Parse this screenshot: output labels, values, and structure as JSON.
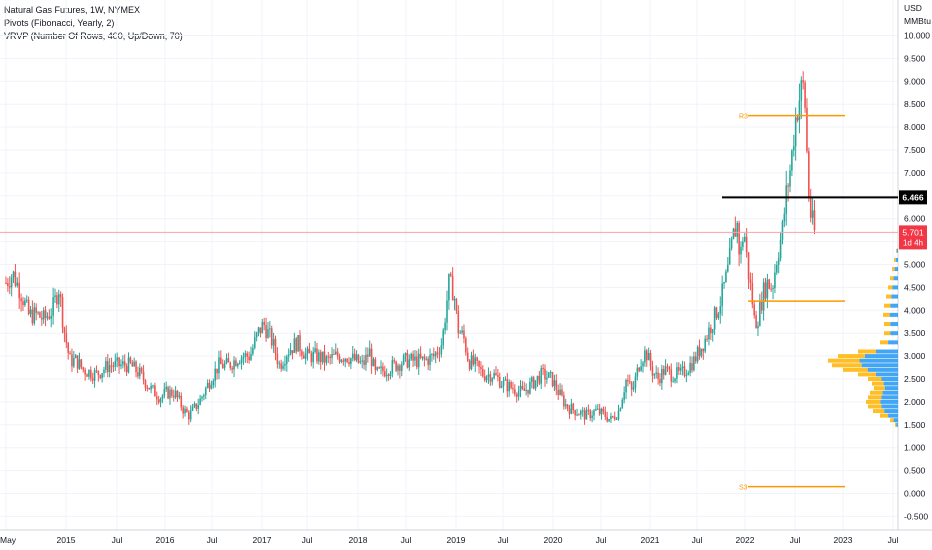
{
  "legend": {
    "line1": "Natural Gas Futures, 1W, NYMEX",
    "line2": "Pivots (Fibonacci, Yearly, 2)",
    "line3": "VRVP (Number Of Rows, 400, Up/Down, 70)"
  },
  "axis_units": [
    "USD",
    "MMBtu"
  ],
  "price_badges": {
    "level_label": "6.466",
    "last_price": "5.701",
    "countdown": "1d 4h"
  },
  "pivot_labels": {
    "r3": "R3",
    "s3": "S3"
  },
  "colors": {
    "up": "#26a69a",
    "down": "#ef5350",
    "pivot": "#ff9800",
    "vol_up": "#2196f3",
    "vol_down": "#ffb300",
    "level": "#000000",
    "last": "#f23645"
  },
  "chart_data": {
    "type": "candlestick",
    "title": "Natural Gas Futures, 1W, NYMEX",
    "x_tick_labels": [
      "May",
      "2015",
      "Jul",
      "2016",
      "Jul",
      "2017",
      "Jul",
      "2018",
      "Jul",
      "2019",
      "Jul",
      "2020",
      "Jul",
      "2021",
      "Jul",
      "2022",
      "Jul",
      "2023",
      "Jul"
    ],
    "y_tick_labels": [
      "10.000",
      "9.500",
      "9.000",
      "8.500",
      "8.000",
      "7.500",
      "7.000",
      "6.500",
      "6.000",
      "5.500",
      "5.000",
      "4.500",
      "4.000",
      "3.500",
      "3.000",
      "2.500",
      "2.000",
      "1.500",
      "1.000",
      "0.500",
      "0.000",
      "-0.500"
    ],
    "ylim": [
      -0.6,
      10.4
    ],
    "xlim": [
      2014.33,
      2023.5
    ],
    "grid": true,
    "price_path": [
      [
        2014.33,
        4.6
      ],
      [
        2014.4,
        4.8
      ],
      [
        2014.48,
        4.4
      ],
      [
        2014.56,
        3.9
      ],
      [
        2014.65,
        3.9
      ],
      [
        2014.72,
        3.8
      ],
      [
        2014.8,
        4.0
      ],
      [
        2014.87,
        4.5
      ],
      [
        2014.92,
        3.6
      ],
      [
        2014.98,
        2.9
      ],
      [
        2015.05,
        2.9
      ],
      [
        2015.12,
        2.7
      ],
      [
        2015.25,
        2.6
      ],
      [
        2015.38,
        2.8
      ],
      [
        2015.5,
        2.8
      ],
      [
        2015.6,
        2.8
      ],
      [
        2015.7,
        2.6
      ],
      [
        2015.8,
        2.3
      ],
      [
        2015.9,
        2.1
      ],
      [
        2015.97,
        2.2
      ],
      [
        2016.05,
        2.2
      ],
      [
        2016.15,
        1.8
      ],
      [
        2016.2,
        1.7
      ],
      [
        2016.3,
        2.0
      ],
      [
        2016.42,
        2.5
      ],
      [
        2016.5,
        2.8
      ],
      [
        2016.6,
        2.8
      ],
      [
        2016.72,
        3.0
      ],
      [
        2016.82,
        3.0
      ],
      [
        2016.9,
        3.5
      ],
      [
        2016.96,
        3.7
      ],
      [
        2017.05,
        3.3
      ],
      [
        2017.12,
        2.8
      ],
      [
        2017.2,
        3.1
      ],
      [
        2017.3,
        3.3
      ],
      [
        2017.4,
        3.0
      ],
      [
        2017.5,
        3.0
      ],
      [
        2017.6,
        2.9
      ],
      [
        2017.7,
        3.0
      ],
      [
        2017.8,
        3.0
      ],
      [
        2017.9,
        2.9
      ],
      [
        2017.97,
        2.8
      ],
      [
        2018.04,
        3.1
      ],
      [
        2018.1,
        2.6
      ],
      [
        2018.2,
        2.7
      ],
      [
        2018.3,
        2.8
      ],
      [
        2018.4,
        2.9
      ],
      [
        2018.5,
        2.9
      ],
      [
        2018.6,
        2.9
      ],
      [
        2018.7,
        3.0
      ],
      [
        2018.78,
        3.3
      ],
      [
        2018.85,
        4.6
      ],
      [
        2018.9,
        4.4
      ],
      [
        2018.94,
        3.6
      ],
      [
        2019.0,
        3.4
      ],
      [
        2019.05,
        2.9
      ],
      [
        2019.12,
        2.8
      ],
      [
        2019.2,
        2.6
      ],
      [
        2019.3,
        2.6
      ],
      [
        2019.4,
        2.4
      ],
      [
        2019.5,
        2.3
      ],
      [
        2019.6,
        2.2
      ],
      [
        2019.7,
        2.4
      ],
      [
        2019.8,
        2.6
      ],
      [
        2019.9,
        2.5
      ],
      [
        2019.97,
        2.2
      ],
      [
        2020.05,
        1.9
      ],
      [
        2020.15,
        1.8
      ],
      [
        2020.25,
        1.7
      ],
      [
        2020.35,
        1.8
      ],
      [
        2020.45,
        1.7
      ],
      [
        2020.5,
        1.6
      ],
      [
        2020.58,
        1.8
      ],
      [
        2020.66,
        2.5
      ],
      [
        2020.72,
        2.2
      ],
      [
        2020.8,
        2.9
      ],
      [
        2020.86,
        3.1
      ],
      [
        2020.92,
        2.7
      ],
      [
        2020.98,
        2.5
      ],
      [
        2021.05,
        2.7
      ],
      [
        2021.12,
        2.6
      ],
      [
        2021.22,
        2.6
      ],
      [
        2021.35,
        2.9
      ],
      [
        2021.45,
        3.3
      ],
      [
        2021.55,
        3.8
      ],
      [
        2021.62,
        4.2
      ],
      [
        2021.7,
        4.9
      ],
      [
        2021.75,
        5.6
      ],
      [
        2021.79,
        5.9
      ],
      [
        2021.82,
        5.1
      ],
      [
        2021.86,
        5.8
      ],
      [
        2021.9,
        4.9
      ],
      [
        2021.94,
        4.3
      ],
      [
        2021.97,
        3.7
      ],
      [
        2022.01,
        3.9
      ],
      [
        2022.06,
        4.4
      ],
      [
        2022.1,
        4.6
      ],
      [
        2022.15,
        4.5
      ],
      [
        2022.2,
        5.2
      ],
      [
        2022.25,
        5.7
      ],
      [
        2022.29,
        6.5
      ],
      [
        2022.34,
        7.2
      ],
      [
        2022.38,
        8.1
      ],
      [
        2022.42,
        8.6
      ],
      [
        2022.46,
        8.9
      ],
      [
        2022.48,
        8.7
      ],
      [
        2022.5,
        7.6
      ],
      [
        2022.53,
        6.2
      ],
      [
        2022.56,
        5.9
      ],
      [
        2022.58,
        5.7
      ]
    ],
    "last_price": 5.701,
    "horizontal_level": 6.466,
    "pivot_levels": [
      {
        "label": "R3",
        "value": 8.25
      },
      {
        "label": "",
        "value": 4.2
      },
      {
        "label": "S3",
        "value": 0.15
      }
    ]
  }
}
